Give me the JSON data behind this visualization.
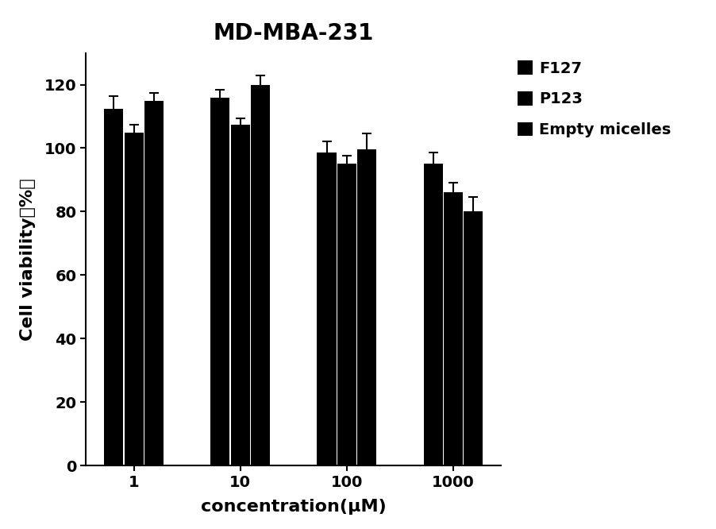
{
  "title": "MD-MBA-231",
  "xlabel": "concentration(μM)",
  "ylabel": "Cell viability（%）",
  "ylabel_display": "Cell viability（%）",
  "x_positions": [
    1,
    10,
    100,
    1000
  ],
  "x_labels": [
    "1",
    "10",
    "100",
    "1000"
  ],
  "series": [
    {
      "name": "F127",
      "values": [
        112.5,
        116.0,
        98.5,
        95.0
      ],
      "errors": [
        4.0,
        2.5,
        3.5,
        3.5
      ],
      "color": "#000000"
    },
    {
      "name": "P123",
      "values": [
        105.0,
        107.5,
        95.0,
        86.0
      ],
      "errors": [
        2.5,
        2.0,
        2.5,
        3.0
      ],
      "color": "#000000"
    },
    {
      "name": "Empty micelles",
      "values": [
        115.0,
        120.0,
        99.5,
        80.0
      ],
      "errors": [
        2.5,
        3.0,
        5.0,
        4.5
      ],
      "color": "#000000"
    }
  ],
  "ylim": [
    0,
    130
  ],
  "yticks": [
    0,
    20,
    40,
    60,
    80,
    100,
    120
  ],
  "bar_width": 0.18,
  "title_fontsize": 20,
  "label_fontsize": 16,
  "tick_fontsize": 14,
  "legend_fontsize": 14,
  "background_color": "#ffffff"
}
